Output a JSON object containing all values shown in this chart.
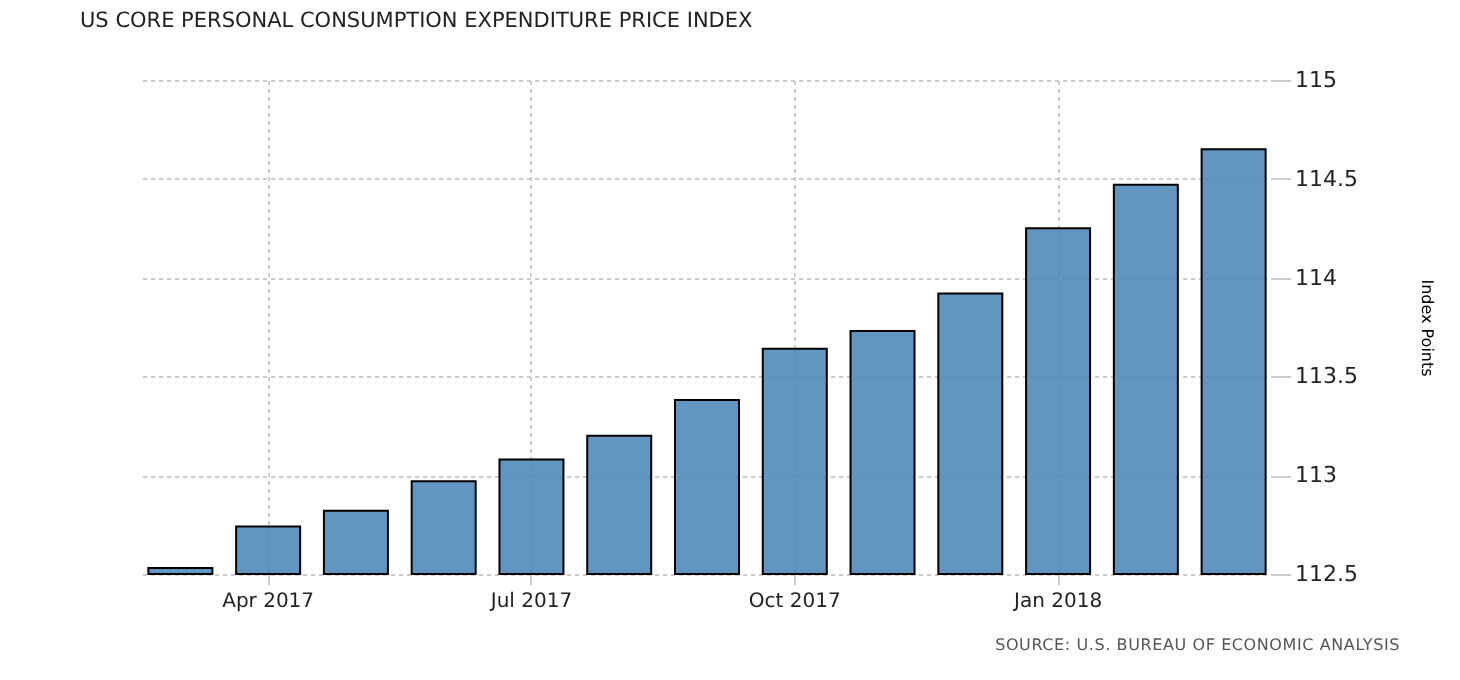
{
  "chart_data": {
    "type": "bar",
    "title": "US CORE PERSONAL CONSUMPTION EXPENDITURE PRICE INDEX",
    "ylabel": "Index Points",
    "categories": [
      null,
      "Apr 2017",
      null,
      null,
      "Jul 2017",
      null,
      null,
      "Oct 2017",
      null,
      null,
      "Jan 2018",
      null,
      null
    ],
    "values": [
      112.53,
      112.74,
      112.82,
      112.97,
      113.08,
      113.2,
      113.38,
      113.64,
      113.73,
      113.92,
      114.25,
      114.47,
      114.65
    ],
    "color": "#4682b4",
    "ylim": [
      112.5,
      115
    ],
    "yticks": [
      112.5,
      113,
      113.5,
      114,
      114.5,
      115
    ],
    "grid": true,
    "annotations": [
      "SOURCE: U.S. BUREAU OF ECONOMIC ANALYSIS"
    ]
  }
}
